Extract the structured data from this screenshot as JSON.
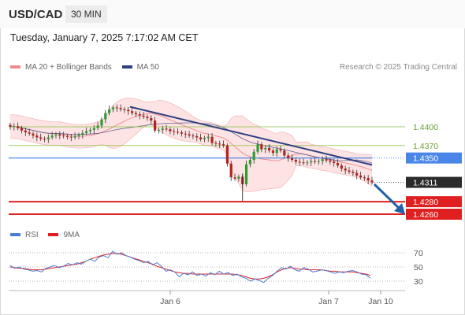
{
  "header": {
    "pair": "USD/CAD",
    "timeframe": "30 MIN"
  },
  "date_label": "Tuesday, January 7, 2025 7:17:02 AM CET",
  "legend": {
    "bollinger": "MA 20 + Bollinger Bands",
    "ma50": "MA 50",
    "rsi": "RSI",
    "rsi_ma": "9MA"
  },
  "credit": "Research © 2025 Trading Central",
  "colors": {
    "bollinger": "#f08a8a",
    "band_fill": "#fde3e3",
    "ma50": "#2e3f80",
    "resistance": "#8bc34a",
    "pivot": "#4a86e8",
    "support": "#e02020",
    "arrow": "#2360a8",
    "rsi": "#4a7fd8",
    "rsi_ma": "#e02020"
  },
  "chart_data": {
    "type": "candlestick",
    "pair": "USD/CAD",
    "timeframe": "30 MIN",
    "x_labels": [
      "Jan 6",
      "Jan 7",
      "Jan 10"
    ],
    "y_range": [
      1.4245,
      1.4445
    ],
    "levels": [
      {
        "value": 1.44,
        "label": "1.4400",
        "kind": "resistance"
      },
      {
        "value": 1.437,
        "label": "1.4370",
        "kind": "resistance"
      },
      {
        "value": 1.435,
        "label": "1.4350",
        "kind": "pivot"
      },
      {
        "value": 1.4311,
        "label": "1.4311",
        "kind": "last"
      },
      {
        "value": 1.428,
        "label": "1.4280",
        "kind": "support"
      },
      {
        "value": 1.426,
        "label": "1.4260",
        "kind": "support"
      }
    ],
    "trendline": [
      1.4432,
      1.4339
    ],
    "forecast_arrow": "down",
    "closes": [
      1.44,
      1.4401,
      1.4398,
      1.4394,
      1.4391,
      1.4389,
      1.4386,
      1.4383,
      1.4381,
      1.438,
      1.4383,
      1.4386,
      1.4388,
      1.4386,
      1.4385,
      1.4384,
      1.4383,
      1.4385,
      1.4387,
      1.439,
      1.4393,
      1.4395,
      1.4398,
      1.4402,
      1.4412,
      1.4422,
      1.4428,
      1.4431,
      1.443,
      1.4428,
      1.4427,
      1.4425,
      1.4422,
      1.442,
      1.4418,
      1.4416,
      1.4414,
      1.441,
      1.4394,
      1.4395,
      1.4397,
      1.4396,
      1.4393,
      1.4392,
      1.4391,
      1.4389,
      1.4388,
      1.4386,
      1.4385,
      1.4383,
      1.438,
      1.4382,
      1.4384,
      1.4374,
      1.4373,
      1.4372,
      1.437,
      1.4341,
      1.4319,
      1.4317,
      1.432,
      1.4308,
      1.434,
      1.4347,
      1.436,
      1.4372,
      1.4364,
      1.4366,
      1.4362,
      1.4358,
      1.4364,
      1.4362,
      1.4354,
      1.435,
      1.4347,
      1.4344,
      1.4343,
      1.4342,
      1.4343,
      1.4345,
      1.4344,
      1.4345,
      1.4348,
      1.4346,
      1.4344,
      1.4342,
      1.4338,
      1.4333,
      1.433,
      1.4328,
      1.4326,
      1.4322,
      1.4319,
      1.4318,
      1.4314,
      1.4311
    ],
    "rsi": {
      "ticks": [
        70,
        50,
        30
      ],
      "rsi": [
        52,
        48,
        50,
        47,
        46,
        44,
        45,
        43,
        48,
        50,
        52,
        49,
        51,
        55,
        53,
        56,
        54,
        58,
        61,
        58,
        64,
        66,
        63,
        72,
        68,
        70,
        66,
        64,
        61,
        59,
        56,
        58,
        53,
        56,
        51,
        44,
        46,
        43,
        36,
        41,
        39,
        43,
        38,
        40,
        37,
        42,
        39,
        44,
        40,
        42,
        38,
        40,
        36,
        34,
        30,
        33,
        31,
        28,
        34,
        38,
        44,
        49,
        47,
        51,
        46,
        44,
        49,
        47,
        43,
        44,
        46,
        45,
        43,
        41,
        43,
        42,
        44,
        45,
        43,
        40,
        39,
        34
      ],
      "ma": [
        50,
        49,
        48,
        48,
        47,
        46,
        46,
        46,
        47,
        48,
        49,
        50,
        51,
        52,
        53,
        54,
        56,
        58,
        61,
        63,
        65,
        67,
        68,
        69,
        69,
        68,
        66,
        64,
        62,
        60,
        58,
        56,
        54,
        51,
        49,
        47,
        45,
        43,
        42,
        41,
        41,
        40,
        40,
        40,
        40,
        40,
        40,
        40,
        40,
        40,
        40,
        39,
        38,
        36,
        34,
        33,
        33,
        34,
        36,
        39,
        43,
        46,
        48,
        49,
        48,
        47,
        47,
        46,
        46,
        46,
        46,
        45,
        44,
        44,
        43,
        43,
        43,
        43,
        42,
        41,
        40,
        38
      ]
    }
  }
}
